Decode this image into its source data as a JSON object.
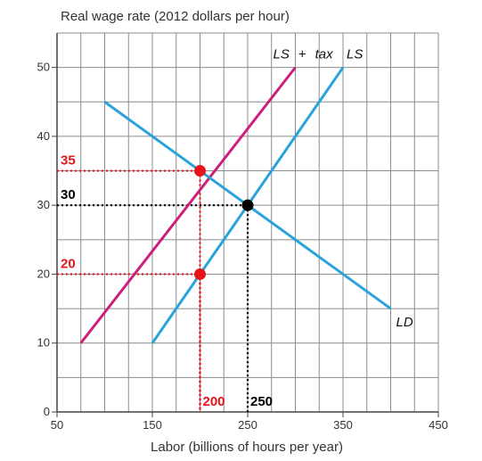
{
  "chart_data": {
    "type": "line",
    "ylabel": "Real wage rate (2012 dollars per hour)",
    "xlabel": "Labor (billions of hours per year)",
    "xlim": [
      50,
      450
    ],
    "ylim": [
      0,
      55
    ],
    "x_ticks": [
      50,
      150,
      250,
      350,
      450
    ],
    "y_ticks": [
      0,
      10,
      20,
      30,
      40,
      50
    ],
    "x_tick_labels": [
      "50",
      "150",
      "250",
      "350",
      "450"
    ],
    "y_tick_labels": [
      "0",
      "10",
      "20",
      "30",
      "40",
      "50"
    ],
    "grid": true,
    "series": [
      {
        "name": "LS + tax",
        "label_parts": [
          "LS",
          "+",
          "tax"
        ],
        "color": "#cc1f7a",
        "x": [
          75,
          300
        ],
        "y": [
          10,
          50
        ]
      },
      {
        "name": "LS",
        "color": "#29a3d9",
        "x": [
          150,
          350
        ],
        "y": [
          10,
          50
        ]
      },
      {
        "name": "LD",
        "color": "#29a3d9",
        "x": [
          100,
          400
        ],
        "y": [
          45,
          15
        ]
      }
    ],
    "points": [
      {
        "x": 200,
        "y": 35,
        "color": "#e8141c"
      },
      {
        "x": 200,
        "y": 20,
        "color": "#e8141c"
      },
      {
        "x": 250,
        "y": 30,
        "color": "#000000"
      }
    ],
    "guides": [
      {
        "x": 200,
        "y": 35,
        "color": "#e8141c"
      },
      {
        "x": 200,
        "y": 20,
        "color": "#e8141c"
      },
      {
        "x": 250,
        "y": 30,
        "color": "#000000"
      }
    ],
    "annotations": [
      {
        "text": "35",
        "axis": "y",
        "value": 35,
        "color": "#e8141c"
      },
      {
        "text": "30",
        "axis": "y",
        "value": 30,
        "color": "#000000"
      },
      {
        "text": "20",
        "axis": "y",
        "value": 20,
        "color": "#e8141c"
      },
      {
        "text": "200",
        "axis": "x",
        "value": 200,
        "color": "#e8141c"
      },
      {
        "text": "250",
        "axis": "x",
        "value": 250,
        "color": "#000000"
      }
    ]
  }
}
